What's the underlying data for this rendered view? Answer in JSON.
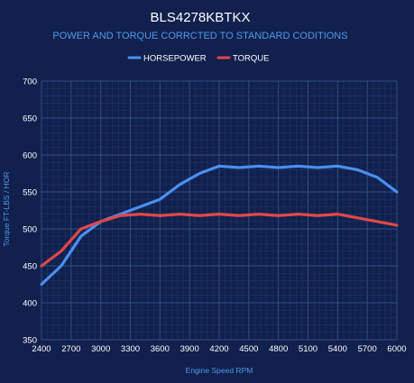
{
  "chart_data": {
    "type": "line",
    "title": "BLS4278KBTKX",
    "subtitle": "POWER AND TORQUE CORRCTED TO STANDARD CODITIONS",
    "xlabel": "Engine Speed RPM",
    "ylabel": "Torque FT-LBS / HOR",
    "xlim": [
      2400,
      6000
    ],
    "ylim": [
      350,
      700
    ],
    "x_ticks": [
      2400,
      2700,
      3000,
      3300,
      3600,
      3900,
      4200,
      4500,
      4800,
      5100,
      5400,
      5700,
      6000
    ],
    "y_ticks": [
      350,
      400,
      450,
      500,
      550,
      600,
      650,
      700
    ],
    "grid": true,
    "legend_position": "top-center",
    "series": [
      {
        "name": "HORSEPOWER",
        "color": "#4a8ff0",
        "x": [
          2400,
          2600,
          2800,
          3000,
          3200,
          3400,
          3600,
          3800,
          4000,
          4200,
          4400,
          4600,
          4800,
          5000,
          5200,
          5400,
          5600,
          5800,
          6000
        ],
        "y": [
          425,
          450,
          490,
          510,
          520,
          530,
          540,
          560,
          575,
          585,
          583,
          585,
          583,
          585,
          583,
          585,
          580,
          570,
          550
        ]
      },
      {
        "name": "TORQUE",
        "color": "#e04848",
        "x": [
          2400,
          2600,
          2800,
          3000,
          3200,
          3400,
          3600,
          3800,
          4000,
          4200,
          4400,
          4600,
          4800,
          5000,
          5200,
          5400,
          5600,
          5800,
          6000
        ],
        "y": [
          450,
          470,
          500,
          510,
          518,
          520,
          518,
          520,
          518,
          520,
          518,
          520,
          518,
          520,
          518,
          520,
          515,
          510,
          505
        ]
      }
    ]
  }
}
